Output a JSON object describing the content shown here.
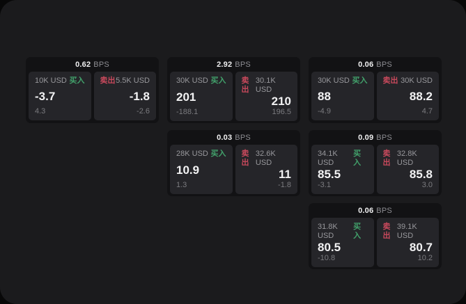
{
  "labels": {
    "bps_unit": "BPS",
    "buy": "买入",
    "sell": "卖出"
  },
  "colors": {
    "outer_background": "#080808",
    "panel_background": "#1b1b1d",
    "card_background": "#121214",
    "subpanel_background": "#252529",
    "buy": "#42a16b",
    "sell": "#c8495c",
    "value_text": "#f2f2f3",
    "label_text": "#98989c",
    "sub_text": "#7b7b7f"
  },
  "cards": [
    {
      "bps": "0.62",
      "buy": {
        "amount": "10K USD",
        "price": "-3.7",
        "sub": "4.3"
      },
      "sell": {
        "amount": "5.5K USD",
        "price": "-1.8",
        "sub": "-2.6"
      }
    },
    {
      "bps": "2.92",
      "buy": {
        "amount": "30K USD",
        "price": "201",
        "sub": "-188.1"
      },
      "sell": {
        "amount": "30.1K USD",
        "price": "210",
        "sub": "196.5"
      }
    },
    {
      "bps": "0.06",
      "buy": {
        "amount": "30K USD",
        "price": "88",
        "sub": "-4.9"
      },
      "sell": {
        "amount": "30K USD",
        "price": "88.2",
        "sub": "4.7"
      }
    },
    {
      "bps": "0.03",
      "buy": {
        "amount": "28K USD",
        "price": "10.9",
        "sub": "1.3"
      },
      "sell": {
        "amount": "32.6K USD",
        "price": "11",
        "sub": "-1.8"
      }
    },
    {
      "bps": "0.09",
      "buy": {
        "amount": "34.1K USD",
        "price": "85.5",
        "sub": "-3.1"
      },
      "sell": {
        "amount": "32.8K USD",
        "price": "85.8",
        "sub": "3.0"
      }
    },
    {
      "bps": "0.06",
      "buy": {
        "amount": "31.8K USD",
        "price": "80.5",
        "sub": "-10.8"
      },
      "sell": {
        "amount": "39.1K USD",
        "price": "80.7",
        "sub": "10.2"
      }
    }
  ]
}
